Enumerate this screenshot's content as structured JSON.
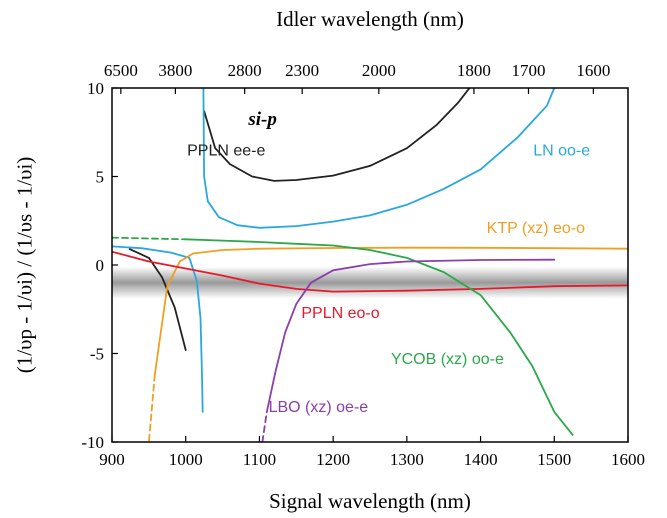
{
  "chart_data": {
    "type": "line",
    "xlabel": "Signal wavelength (nm)",
    "x2label": "Idler wavelength (nm)",
    "ylabel": "(1/υp - 1/υi) / (1/υs - 1/υi)",
    "xlim": [
      900,
      1600
    ],
    "ylim": [
      -10,
      10
    ],
    "x_ticks": [
      900,
      1000,
      1100,
      1200,
      1300,
      1400,
      1500,
      1600
    ],
    "y_ticks": [
      -10,
      -5,
      0,
      5,
      10
    ],
    "y_tick_labels": [
      "-10",
      "-5",
      "0",
      "5",
      "10"
    ],
    "x2_ticks": [
      {
        "signal": 912,
        "label": "6500"
      },
      {
        "signal": 986,
        "label": "3800"
      },
      {
        "signal": 1080,
        "label": "2800"
      },
      {
        "signal": 1158,
        "label": "2300"
      },
      {
        "signal": 1262,
        "label": "2000"
      },
      {
        "signal": 1391,
        "label": "1800"
      },
      {
        "signal": 1465,
        "label": "1700"
      },
      {
        "signal": 1553,
        "label": "1600"
      }
    ],
    "annotation": "si-p",
    "gray_band": {
      "center": -1,
      "half_width": 0.9
    },
    "series": [
      {
        "name": "PPLN ee-e",
        "color": "#222222",
        "points": [
          [
            1025,
            8.7
          ],
          [
            1040,
            6.6
          ],
          [
            1060,
            5.7
          ],
          [
            1090,
            5.0
          ],
          [
            1120,
            4.75
          ],
          [
            1150,
            4.8
          ],
          [
            1200,
            5.05
          ],
          [
            1250,
            5.6
          ],
          [
            1300,
            6.6
          ],
          [
            1340,
            7.9
          ],
          [
            1370,
            9.2
          ],
          [
            1385,
            10
          ]
        ]
      },
      {
        "name": "",
        "color": "#222222",
        "points": [
          [
            924,
            0.9
          ],
          [
            950,
            0.4
          ],
          [
            968,
            -0.7
          ],
          [
            985,
            -2.4
          ],
          [
            1000,
            -4.8
          ]
        ]
      },
      {
        "name": "LN oo-e",
        "color": "#29a8e0",
        "points": [
          [
            1024,
            10
          ],
          [
            1025,
            5.0
          ],
          [
            1030,
            3.6
          ],
          [
            1045,
            2.7
          ],
          [
            1070,
            2.25
          ],
          [
            1100,
            2.1
          ],
          [
            1150,
            2.2
          ],
          [
            1200,
            2.45
          ],
          [
            1250,
            2.8
          ],
          [
            1300,
            3.4
          ],
          [
            1350,
            4.3
          ],
          [
            1400,
            5.4
          ],
          [
            1450,
            7.2
          ],
          [
            1490,
            9.0
          ],
          [
            1500,
            10
          ]
        ]
      },
      {
        "name": "",
        "color": "#29a8e0",
        "points": [
          [
            900,
            1.05
          ],
          [
            940,
            0.95
          ],
          [
            980,
            0.7
          ],
          [
            1005,
            0.4
          ],
          [
            1015,
            -0.9
          ],
          [
            1020,
            -3.0
          ],
          [
            1022,
            -6.0
          ],
          [
            1023,
            -8.3
          ]
        ]
      },
      {
        "name": "KTP (xz) eo-o",
        "color": "#f0a020",
        "points": [
          [
            958,
            -6.2
          ],
          [
            975,
            -1.2
          ],
          [
            992,
            0.2
          ],
          [
            1010,
            0.65
          ],
          [
            1050,
            0.85
          ],
          [
            1100,
            0.92
          ],
          [
            1200,
            0.96
          ],
          [
            1300,
            0.98
          ],
          [
            1400,
            0.97
          ],
          [
            1500,
            0.95
          ],
          [
            1600,
            0.92
          ]
        ]
      },
      {
        "name": "",
        "color": "#f0a020",
        "dashed": true,
        "points": [
          [
            958,
            -6.2
          ],
          [
            950,
            -10
          ]
        ]
      },
      {
        "name": "PPLN eo-o",
        "color": "#e8192c",
        "points": [
          [
            900,
            0.75
          ],
          [
            950,
            0.2
          ],
          [
            1000,
            -0.2
          ],
          [
            1050,
            -0.6
          ],
          [
            1100,
            -1.05
          ],
          [
            1150,
            -1.35
          ],
          [
            1200,
            -1.5
          ],
          [
            1300,
            -1.45
          ],
          [
            1400,
            -1.35
          ],
          [
            1500,
            -1.2
          ],
          [
            1600,
            -1.15
          ]
        ]
      },
      {
        "name": "YCOB (xz) oo-e",
        "color": "#2ba84a",
        "points": [
          [
            1000,
            1.45
          ],
          [
            1050,
            1.38
          ],
          [
            1100,
            1.3
          ],
          [
            1150,
            1.2
          ],
          [
            1200,
            1.1
          ],
          [
            1250,
            0.85
          ],
          [
            1300,
            0.4
          ],
          [
            1350,
            -0.4
          ],
          [
            1400,
            -1.7
          ],
          [
            1440,
            -3.8
          ],
          [
            1470,
            -5.7
          ],
          [
            1500,
            -8.3
          ],
          [
            1525,
            -9.6
          ]
        ]
      },
      {
        "name": "",
        "color": "#2ba84a",
        "dashed": true,
        "points": [
          [
            900,
            1.55
          ],
          [
            950,
            1.5
          ],
          [
            1000,
            1.45
          ]
        ]
      },
      {
        "name": "LBO (xz) oe-e",
        "color": "#8b3fa8",
        "points": [
          [
            1110,
            -8.3
          ],
          [
            1122,
            -6.0
          ],
          [
            1135,
            -3.8
          ],
          [
            1150,
            -2.2
          ],
          [
            1170,
            -1.0
          ],
          [
            1200,
            -0.3
          ],
          [
            1250,
            0.05
          ],
          [
            1300,
            0.2
          ],
          [
            1400,
            0.28
          ],
          [
            1500,
            0.3
          ]
        ]
      },
      {
        "name": "",
        "color": "#8b3fa8",
        "dashed": true,
        "points": [
          [
            1104,
            -10
          ],
          [
            1110,
            -8.3
          ]
        ]
      }
    ],
    "labels": [
      {
        "series": "PPLN ee-e",
        "text": "PPLN ee-e",
        "x": 1055,
        "y": 6.2,
        "color": "#222222"
      },
      {
        "series": "LN oo-e",
        "text": "LN oo-e",
        "x": 1510,
        "y": 6.2,
        "color": "#29a8e0"
      },
      {
        "series": "KTP (xz) eo-o",
        "text": "KTP (xz) eo-o",
        "x": 1475,
        "y": 1.8,
        "color": "#f0a020"
      },
      {
        "series": "PPLN eo-o",
        "text": "PPLN eo-o",
        "x": 1210,
        "y": -3.0,
        "color": "#e8192c"
      },
      {
        "series": "YCOB (xz) oo-e",
        "text": "YCOB (xz) oo-e",
        "x": 1355,
        "y": -5.6,
        "color": "#2ba84a"
      },
      {
        "series": "LBO (xz) oe-e",
        "text": "LBO (xz) oe-e",
        "x": 1180,
        "y": -8.3,
        "color": "#8b3fa8"
      }
    ]
  }
}
